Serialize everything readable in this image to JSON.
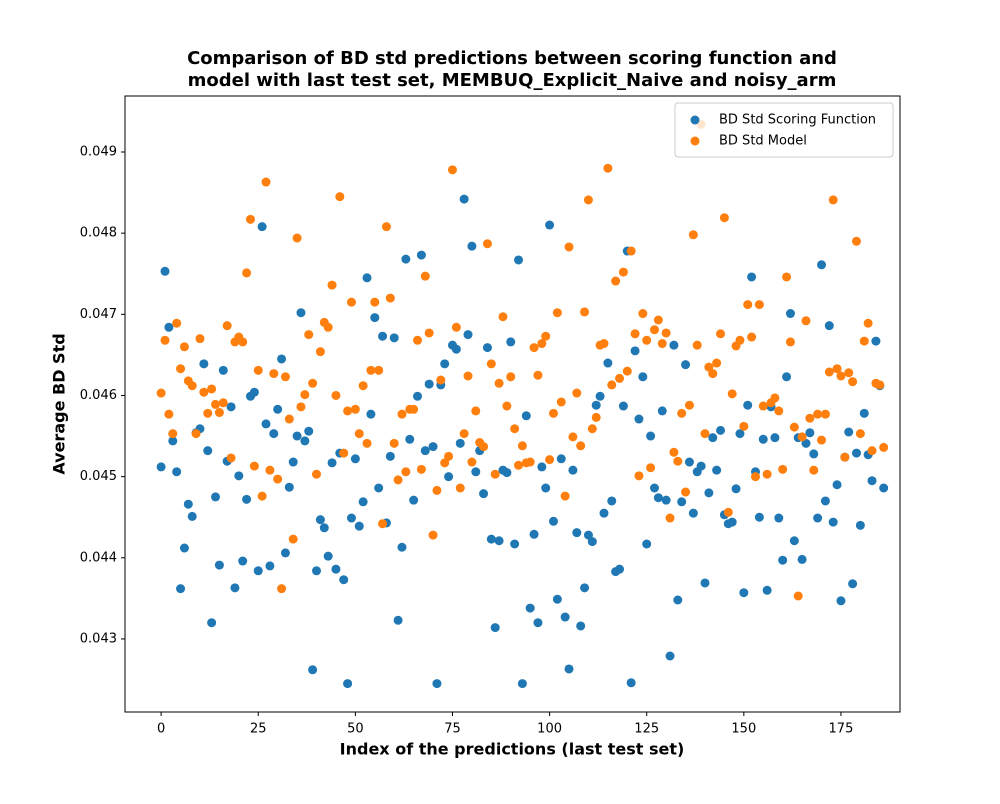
{
  "chart_data": {
    "type": "scatter",
    "title": "Comparison of BD std predictions between scoring function and\nmodel with last test set, MEMBUQ_Explicit_Naive and noisy_arm",
    "x_label": "Index of the predictions (last test set)",
    "y_label": "Average BD Std",
    "xlim": [
      -9.3,
      190.2
    ],
    "ylim": [
      0.0421,
      0.04969
    ],
    "xticks": [
      0,
      25,
      50,
      75,
      100,
      125,
      150,
      175
    ],
    "yticks": [
      0.043,
      0.044,
      0.045,
      0.046,
      0.047,
      0.048,
      0.049
    ],
    "legend": "upper right",
    "x": [
      0,
      1,
      2,
      3,
      4,
      5,
      6,
      7,
      8,
      9,
      10,
      11,
      12,
      13,
      14,
      15,
      16,
      17,
      18,
      19,
      20,
      21,
      22,
      23,
      24,
      25,
      26,
      27,
      28,
      29,
      30,
      31,
      32,
      33,
      34,
      35,
      36,
      37,
      38,
      39,
      40,
      41,
      42,
      43,
      44,
      45,
      46,
      47,
      48,
      49,
      50,
      51,
      52,
      53,
      54,
      55,
      56,
      57,
      58,
      59,
      60,
      61,
      62,
      63,
      64,
      65,
      66,
      67,
      68,
      69,
      70,
      71,
      72,
      73,
      74,
      75,
      76,
      77,
      78,
      79,
      80,
      81,
      82,
      83,
      84,
      85,
      86,
      87,
      88,
      89,
      90,
      91,
      92,
      93,
      94,
      95,
      96,
      97,
      98,
      99,
      100,
      101,
      102,
      103,
      104,
      105,
      106,
      107,
      108,
      109,
      110,
      111,
      112,
      113,
      114,
      115,
      116,
      117,
      118,
      119,
      120,
      121,
      122,
      123,
      124,
      125,
      126,
      127,
      128,
      129,
      130,
      131,
      132,
      133,
      134,
      135,
      136,
      137,
      138,
      139,
      140,
      141,
      142,
      143,
      144,
      145,
      146,
      147,
      148,
      149,
      150,
      151,
      152,
      153,
      154,
      155,
      156,
      157,
      158,
      159,
      160,
      161,
      162,
      163,
      164,
      165,
      166,
      167,
      168,
      169,
      170,
      171,
      172,
      173,
      174,
      175,
      176,
      177,
      178,
      179,
      180,
      181,
      182,
      183,
      184,
      185,
      186
    ],
    "series": [
      {
        "name": "BD Std Scoring Function",
        "color": "#1f77b4",
        "values": [
          0.04512,
          0.04753,
          0.04684,
          0.04544,
          0.04506,
          0.04362,
          0.04412,
          0.04466,
          0.04451,
          0.04554,
          0.04559,
          0.04639,
          0.04532,
          0.0432,
          0.04475,
          0.04391,
          0.04631,
          0.04519,
          0.04586,
          0.04363,
          0.04501,
          0.04396,
          0.04472,
          0.04599,
          0.04604,
          0.04384,
          0.04808,
          0.04565,
          0.0439,
          0.04553,
          0.04583,
          0.04645,
          0.04406,
          0.04487,
          0.04518,
          0.0455,
          0.04702,
          0.04544,
          0.04556,
          0.04262,
          0.04384,
          0.04447,
          0.04437,
          0.04402,
          0.04517,
          0.04386,
          0.04529,
          0.04373,
          0.04245,
          0.04449,
          0.04522,
          0.04439,
          0.04469,
          0.04745,
          0.04577,
          0.04696,
          0.04486,
          0.04673,
          0.04443,
          0.04525,
          0.04671,
          0.04323,
          0.04413,
          0.04768,
          0.04546,
          0.04471,
          0.04599,
          0.04773,
          0.04532,
          0.04614,
          0.04537,
          0.04245,
          0.04613,
          0.04639,
          0.045,
          0.04662,
          0.04657,
          0.04541,
          0.04842,
          0.04675,
          0.04784,
          0.04506,
          0.04532,
          0.04479,
          0.04659,
          0.04423,
          0.04314,
          0.04421,
          0.04508,
          0.04505,
          0.04666,
          0.04417,
          0.04767,
          0.04245,
          0.04575,
          0.04338,
          0.04429,
          0.0432,
          0.04512,
          0.04486,
          0.0481,
          0.04445,
          0.04349,
          0.04522,
          0.04327,
          0.04263,
          0.04508,
          0.04431,
          0.04316,
          0.04363,
          0.04428,
          0.0442,
          0.04588,
          0.04599,
          0.04455,
          0.0464,
          0.0447,
          0.04383,
          0.04386,
          0.04587,
          0.04778,
          0.04246,
          0.04655,
          0.04571,
          0.04623,
          0.04417,
          0.0455,
          0.04486,
          0.04474,
          0.04581,
          0.04471,
          0.04279,
          0.04662,
          0.04348,
          0.04469,
          0.04638,
          0.04518,
          0.04455,
          0.04506,
          0.04513,
          0.04369,
          0.0448,
          0.04548,
          0.04508,
          0.04557,
          0.04453,
          0.04442,
          0.04444,
          0.04485,
          0.04553,
          0.04357,
          0.04588,
          0.04746,
          0.04506,
          0.0445,
          0.04546,
          0.0436,
          0.04586,
          0.04548,
          0.04449,
          0.04397,
          0.04623,
          0.04701,
          0.04421,
          0.04548,
          0.04398,
          0.04541,
          0.04554,
          0.04528,
          0.04449,
          0.04761,
          0.0447,
          0.04686,
          0.04444,
          0.0449,
          0.04347,
          0.04524,
          0.04555,
          0.04368,
          0.04529,
          0.0444,
          0.04578,
          0.04527,
          0.04495,
          0.04667,
          0.04612,
          0.04486
        ]
      },
      {
        "name": "BD Std Model",
        "color": "#ff7f0e",
        "values": [
          0.04603,
          0.04668,
          0.04577,
          0.04553,
          0.04689,
          0.04633,
          0.0466,
          0.04618,
          0.04612,
          0.04553,
          0.0467,
          0.04604,
          0.04578,
          0.04608,
          0.04589,
          0.04579,
          0.04591,
          0.04686,
          0.04523,
          0.04666,
          0.04672,
          0.04666,
          0.04751,
          0.04817,
          0.04513,
          0.04631,
          0.04476,
          0.04863,
          0.04508,
          0.04627,
          0.04497,
          0.04362,
          0.04623,
          0.04571,
          0.04423,
          0.04794,
          0.04586,
          0.04601,
          0.04675,
          0.04615,
          0.04503,
          0.04654,
          0.0469,
          0.04684,
          0.04736,
          0.046,
          0.04845,
          0.04529,
          0.04581,
          0.04715,
          0.04583,
          0.04553,
          0.04612,
          0.04541,
          0.04631,
          0.04715,
          0.04631,
          0.04442,
          0.04808,
          0.0472,
          0.04541,
          0.04496,
          0.04577,
          0.04506,
          0.04583,
          0.04583,
          0.04668,
          0.04509,
          0.04747,
          0.04677,
          0.04428,
          0.04483,
          0.04619,
          0.04517,
          0.04525,
          0.04878,
          0.04684,
          0.04486,
          0.04553,
          0.04624,
          0.04518,
          0.04581,
          0.04542,
          0.04537,
          0.04787,
          0.04639,
          0.04503,
          0.04615,
          0.04697,
          0.04587,
          0.04623,
          0.04559,
          0.04514,
          0.04538,
          0.04517,
          0.04518,
          0.04659,
          0.04625,
          0.04664,
          0.04673,
          0.04521,
          0.04578,
          0.04702,
          0.04592,
          0.04476,
          0.04783,
          0.04549,
          0.04603,
          0.04538,
          0.04703,
          0.04841,
          0.04559,
          0.04573,
          0.04662,
          0.04664,
          0.0488,
          0.04613,
          0.04741,
          0.04621,
          0.04752,
          0.0463,
          0.04778,
          0.04676,
          0.04501,
          0.04701,
          0.04668,
          0.04511,
          0.04681,
          0.04693,
          0.04664,
          0.04677,
          0.04449,
          0.0453,
          0.04519,
          0.04578,
          0.04481,
          0.04588,
          0.04798,
          0.04662,
          0.04934,
          0.04553,
          0.04635,
          0.04627,
          0.0464,
          0.04676,
          0.04819,
          0.04456,
          0.04602,
          0.04661,
          0.04668,
          0.04562,
          0.04712,
          0.04672,
          0.045,
          0.04712,
          0.04587,
          0.04503,
          0.04591,
          0.04597,
          0.04581,
          0.04509,
          0.04746,
          0.04666,
          0.04561,
          0.04353,
          0.04549,
          0.04692,
          0.04572,
          0.04508,
          0.04577,
          0.04545,
          0.04577,
          0.04629,
          0.04841,
          0.04633,
          0.04624,
          0.04524,
          0.04628,
          0.04617,
          0.0479,
          0.04553,
          0.04667,
          0.04689,
          0.04532,
          0.04615,
          0.04613,
          0.04536
        ]
      }
    ]
  }
}
